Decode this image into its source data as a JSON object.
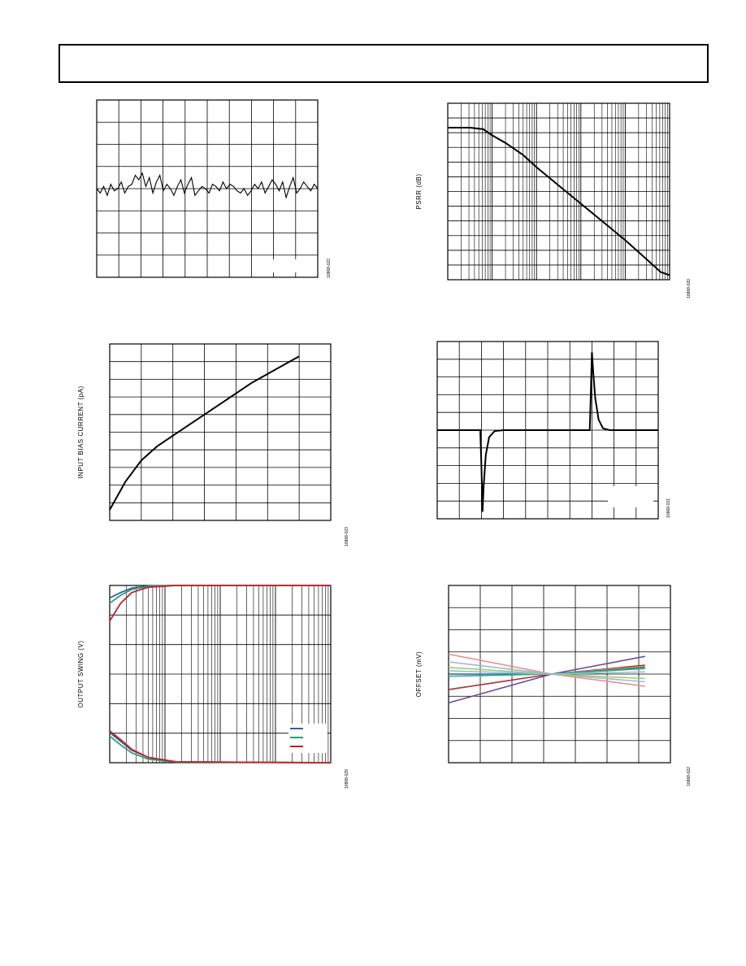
{
  "page": {
    "header_text": ""
  },
  "chart_data": [
    {
      "id": "noise-trace",
      "type": "line",
      "title": "",
      "xlabel": "",
      "ylabel": "",
      "figure_code": "10868-022",
      "grid": true,
      "grid_divisions": {
        "x": 10,
        "y": 8
      },
      "xlim": [
        0,
        10
      ],
      "ylim": [
        -4,
        4
      ],
      "series": [
        {
          "color": "#000000",
          "values": [
            0.0,
            -0.2,
            0.1,
            -0.3,
            0.2,
            -0.1,
            0.0,
            0.3,
            -0.2,
            0.1,
            0.2,
            0.6,
            0.4,
            0.7,
            0.1,
            0.5,
            -0.2,
            0.3,
            0.6,
            -0.1,
            0.2,
            0.0,
            -0.3,
            0.1,
            0.4,
            -0.2,
            0.2,
            0.5,
            -0.3,
            -0.1,
            0.1,
            0.0,
            -0.2,
            0.2,
            0.1,
            -0.1,
            0.3,
            0.0,
            0.2,
            0.1,
            -0.1,
            -0.2,
            0.0,
            -0.3,
            -0.1,
            0.2,
            0.0,
            0.3,
            -0.2,
            0.1,
            0.4,
            0.2,
            -0.1,
            0.3,
            -0.4,
            0.1,
            0.5,
            -0.2,
            0.0,
            0.3,
            0.1,
            -0.1,
            0.2,
            0.0
          ]
        }
      ]
    },
    {
      "id": "psrr",
      "type": "line",
      "title": "",
      "xlabel": "",
      "ylabel": "PSRR (dB)",
      "figure_code": "10868-020",
      "x_scale": "log",
      "grid": true,
      "x_decades": 5,
      "y_divisions": 12,
      "series": [
        {
          "color": "#000000",
          "points": [
            [
              0,
              1.0
            ],
            [
              0.5,
              1.0
            ],
            [
              0.8,
              0.99
            ],
            [
              1.0,
              0.95
            ],
            [
              1.3,
              0.9
            ],
            [
              1.7,
              0.82
            ],
            [
              2.0,
              0.74
            ],
            [
              2.5,
              0.62
            ],
            [
              3.0,
              0.5
            ],
            [
              3.5,
              0.38
            ],
            [
              4.0,
              0.26
            ],
            [
              4.5,
              0.13
            ],
            [
              4.8,
              0.05
            ],
            [
              5.0,
              0.03
            ]
          ]
        }
      ]
    },
    {
      "id": "input-bias",
      "type": "line",
      "title": "",
      "xlabel": "",
      "ylabel": "INPUT BIAS CURRENT (pA)",
      "figure_code": "10868-023",
      "grid": true,
      "grid_divisions": {
        "x": 7,
        "y": 10
      },
      "xlim": [
        0,
        7
      ],
      "ylim": [
        0,
        10
      ],
      "series": [
        {
          "color": "#000000",
          "points": [
            [
              0,
              0.6
            ],
            [
              0.5,
              2.2
            ],
            [
              1.0,
              3.4
            ],
            [
              1.5,
              4.2
            ],
            [
              2.0,
              4.8
            ],
            [
              2.5,
              5.4
            ],
            [
              3.0,
              6.0
            ],
            [
              3.5,
              6.6
            ],
            [
              4.0,
              7.2
            ],
            [
              4.5,
              7.8
            ],
            [
              5.0,
              8.3
            ],
            [
              5.5,
              8.8
            ],
            [
              6.0,
              9.3
            ]
          ]
        }
      ]
    },
    {
      "id": "transient",
      "type": "line",
      "title": "",
      "xlabel": "",
      "ylabel": "",
      "figure_code": "10868-021",
      "grid": true,
      "grid_divisions": {
        "x": 10,
        "y": 10
      },
      "xlim": [
        0,
        10
      ],
      "ylim": [
        -5,
        5
      ],
      "series": [
        {
          "color": "#000000",
          "points": [
            [
              0,
              0.0
            ],
            [
              1.95,
              0.0
            ],
            [
              2.0,
              -2.0
            ],
            [
              2.05,
              -4.6
            ],
            [
              2.1,
              -3.2
            ],
            [
              2.2,
              -1.4
            ],
            [
              2.35,
              -0.4
            ],
            [
              2.6,
              -0.05
            ],
            [
              3.0,
              0.0
            ],
            [
              6.9,
              0.0
            ],
            [
              6.95,
              2.0
            ],
            [
              7.0,
              4.4
            ],
            [
              7.05,
              3.4
            ],
            [
              7.15,
              1.8
            ],
            [
              7.3,
              0.6
            ],
            [
              7.5,
              0.1
            ],
            [
              7.8,
              0.0
            ],
            [
              10,
              0.0
            ]
          ]
        }
      ]
    },
    {
      "id": "output-swing",
      "type": "line",
      "title": "",
      "xlabel": "",
      "ylabel": "OUTPUT SWING (V)",
      "figure_code": "10868-029",
      "x_scale": "log",
      "grid": true,
      "x_decades": 4,
      "y_divisions": 6,
      "legend": {
        "position": "bottom-right",
        "entries": [
          "",
          "",
          ""
        ]
      },
      "series": [
        {
          "color": "#3a5f9c",
          "upper": [
            [
              0,
              0.93
            ],
            [
              0.2,
              0.96
            ],
            [
              0.4,
              0.985
            ],
            [
              0.7,
              0.997
            ],
            [
              1.2,
              1.0
            ],
            [
              4,
              1.0
            ]
          ],
          "lower": [
            [
              0,
              0.17
            ],
            [
              0.2,
              0.12
            ],
            [
              0.4,
              0.07
            ],
            [
              0.7,
              0.03
            ],
            [
              1.2,
              0.005
            ],
            [
              4,
              0.0
            ]
          ]
        },
        {
          "color": "#2a9d7a",
          "upper": [
            [
              0,
              0.9
            ],
            [
              0.2,
              0.945
            ],
            [
              0.4,
              0.978
            ],
            [
              0.7,
              0.995
            ],
            [
              1.2,
              1.0
            ],
            [
              4,
              1.0
            ]
          ],
          "lower": [
            [
              0,
              0.15
            ],
            [
              0.2,
              0.1
            ],
            [
              0.4,
              0.055
            ],
            [
              0.7,
              0.02
            ],
            [
              1.2,
              0.003
            ],
            [
              4,
              0.0
            ]
          ]
        },
        {
          "color": "#c0202a",
          "upper": [
            [
              0,
              0.8
            ],
            [
              0.2,
              0.9
            ],
            [
              0.4,
              0.96
            ],
            [
              0.7,
              0.99
            ],
            [
              1.2,
              1.0
            ],
            [
              4,
              1.0
            ]
          ],
          "lower": [
            [
              0,
              0.18
            ],
            [
              0.2,
              0.13
            ],
            [
              0.4,
              0.075
            ],
            [
              0.7,
              0.03
            ],
            [
              1.2,
              0.005
            ],
            [
              4,
              0.0
            ]
          ]
        }
      ]
    },
    {
      "id": "offset",
      "type": "line",
      "title": "",
      "xlabel": "",
      "ylabel": "OFFSET (mV)",
      "figure_code": "10868-022",
      "grid": true,
      "grid_divisions": {
        "x": 7,
        "y": 8
      },
      "xlim": [
        0,
        7
      ],
      "ylim": [
        -4,
        4
      ],
      "crossover_x": 3.25,
      "series": [
        {
          "color": "#6b4c9a",
          "start": -1.3,
          "end": 0.8
        },
        {
          "color": "#e58f8f",
          "start": 0.9,
          "end": -0.55
        },
        {
          "color": "#9bb7d9",
          "start": 0.55,
          "end": -0.35
        },
        {
          "color": "#a8c96c",
          "start": 0.3,
          "end": -0.2
        },
        {
          "color": "#a83232",
          "start": -0.7,
          "end": 0.4
        },
        {
          "color": "#e8a23c",
          "start": 0.0,
          "end": 0.35
        },
        {
          "color": "#2a6fbf",
          "start": 0.0,
          "end": 0.3
        },
        {
          "color": "#3aa88f",
          "start": -0.1,
          "end": 0.25
        },
        {
          "color": "#8ec5c9",
          "start": 0.15,
          "end": 0.1
        }
      ]
    }
  ]
}
